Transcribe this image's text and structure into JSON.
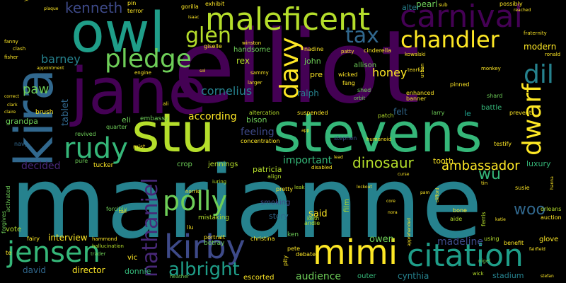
{
  "palette": {
    "purple_dark": "#440154",
    "purple": "#482878",
    "indigo": "#3e4a89",
    "blue": "#31688e",
    "teal": "#26828e",
    "teal_green": "#1f9e89",
    "green": "#35b779",
    "green_light": "#6ece58",
    "lime": "#b5de2b",
    "yellow": "#fde725"
  },
  "words": {
    "marianne": "marianne",
    "elliot": "elliot",
    "stu": "stu",
    "stevens": "stevens",
    "jane": "jane",
    "owl": "owl",
    "kira": "kira",
    "maleficent": "maleficent",
    "carnival": "carnival",
    "kirby": "kirby",
    "mimi": "mimi",
    "citation": "citation",
    "jensen": "jensen",
    "chandler": "chandler",
    "rudy": "rudy",
    "nathaniel": "nathaniel",
    "polly": "polly",
    "davy": "davy",
    "dwarf": "dwarf",
    "pledge": "pledge",
    "glen": "glen",
    "dil": "dil",
    "tax": "tax",
    "kenneth": "kenneth",
    "albright": "albright",
    "wu": "wu",
    "woo": "woo",
    "dinosaur": "dinosaur",
    "ambassador": "ambassador",
    "barney": "barney",
    "paw": "paw",
    "cornelius": "cornelius",
    "honey": "honey",
    "feeling": "feeling",
    "modern": "modern",
    "according": "according",
    "madeline": "madeline",
    "audience": "audience",
    "important": "important",
    "decided": "decided",
    "interview": "interview",
    "owen": "owen",
    "cynthia": "cynthia",
    "director": "director",
    "david": "david",
    "donnie": "donnie",
    "patricia": "patricia",
    "felt": "felt",
    "said": "said",
    "story": "story",
    "tablet": "tablet",
    "grandpa": "grandpa",
    "ralph": "ralph",
    "bison": "bison",
    "pre": "pre",
    "luxury": "luxury",
    "stadium": "stadium",
    "pearl": "pearl",
    "alter": "alter",
    "handsome": "handsome",
    "rex": "rex",
    "john": "john",
    "le": "le",
    "battle": "battle",
    "film": "film",
    "tooth": "tooth",
    "eli": "eli",
    "smoking": "smoking",
    "betray": "betray",
    "crop": "crop",
    "jennings": "jennings",
    "escorted": "escorted",
    "outer": "outer",
    "vote": "vote",
    "vic": "vic",
    "glove": "glove",
    "allison": "allison",
    "mistaking": "mistaking",
    "brush": "brush",
    "embassy": "embassy",
    "altercation": "altercation",
    "suspended": "suspended",
    "concentration": "concentration",
    "tucker": "tucker",
    "pure": "pure",
    "revived": "revived",
    "quarter": "quarter",
    "mist": "mist",
    "forcibly": "forcibly",
    "activated": "activated",
    "forgives": "forgives",
    "navy": "navy",
    "pretty": "pretty",
    "leak": "leak",
    "align": "align",
    "stephen": "stephen",
    "terror": "terror",
    "gorilla": "gorilla",
    "exhibit": "exhibit",
    "pin": "pin",
    "giselle": "giselle",
    "nadine": "nadine",
    "cinderella": "cinderella",
    "fang": "fang",
    "wicked": "wicked",
    "shed": "shed",
    "orbit": "orbit",
    "patch": "patch",
    "larry": "larry",
    "banner": "banner",
    "enhanced": "enhanced",
    "pinned": "pinned",
    "shard": "shard",
    "prevents": "prevents",
    "testify": "testify",
    "susie": "susie",
    "auction": "auction",
    "orleans": "orleans",
    "ferris": "ferris",
    "aide": "aide",
    "bone": "bone",
    "using": "using",
    "benefit": "benefit",
    "hammond": "hammond",
    "fairy": "fairy",
    "trader": "trader",
    "hallucination": "hallucination",
    "portrait": "portrait",
    "christina": "christina",
    "ken": "ken",
    "andie": "andie",
    "keith": "keith",
    "pete": "pete",
    "debate": "debate",
    "pity": "pity",
    "heather": "heather",
    "nigel": "nigel",
    "wick": "wick",
    "tail": "tail",
    "norris": "norris",
    "iuring": "iuring",
    "liu": "liu",
    "sammy": "sammy",
    "possibly": "possibly",
    "fraternity": "fraternity",
    "ronald": "ronald",
    "kowalski": "kowalski",
    "tearful": "tearful",
    "patty": "patty",
    "urban": "urban",
    "monkey": "monkey",
    "sub": "sub",
    "winston": "winston",
    "larger": "larger",
    "ali": "ali",
    "engine": "engine",
    "fanny": "fanny",
    "clash": "clash",
    "fisher": "fisher",
    "appointment": "appointment",
    "correct": "correct",
    "claire": "claire",
    "clark": "clark",
    "yang": "yang",
    "te": "te",
    "hanna": "hanna",
    "fairfield": "fairfield",
    "humanoid": "humanoid",
    "disabled": "disabled",
    "lockout": "lockout",
    "apprehended": "apprehended",
    "nora": "nora",
    "core": "core",
    "app": "app",
    "curse": "curse",
    "tin": "tin",
    "clifford": "clifford",
    "stefan": "stefan",
    "reached": "reached",
    "lead": "lead",
    "pam": "pam",
    "isaac": "isaac",
    "plaque": "plaque",
    "sol": "sol",
    "dwarf2": "katie"
  }
}
